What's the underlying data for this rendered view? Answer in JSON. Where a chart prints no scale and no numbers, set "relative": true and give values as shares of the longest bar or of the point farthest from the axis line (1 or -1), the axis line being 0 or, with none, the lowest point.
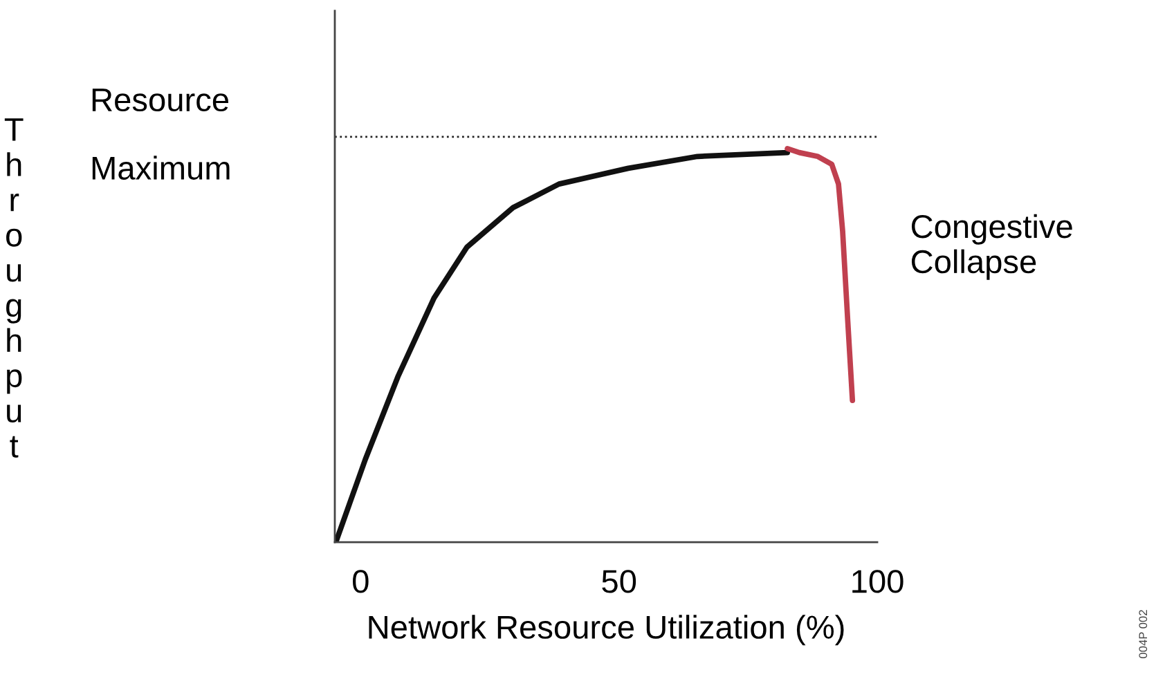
{
  "chart_data": {
    "type": "line",
    "relative": true,
    "xlabel": "Network Resource Utilization (%)",
    "ylabel": "Throughput",
    "xlim": [
      -5,
      100
    ],
    "xticks": [
      0,
      50,
      100
    ],
    "grid": false,
    "legend": false,
    "line_style": "solid",
    "series": [
      {
        "color": "#111111",
        "x": [
          -4.8,
          0.9,
          7.2,
          14.2,
          20.6,
          29.5,
          38.4,
          51.8,
          65.2,
          82.6
        ],
        "values": [
          0,
          0.21,
          0.42,
          0.62,
          0.75,
          0.85,
          0.91,
          0.95,
          0.98,
          0.99
        ]
      },
      {
        "color": "#c0404f",
        "x": [
          82.6,
          84.9,
          88.5,
          91.2,
          92.5,
          93.3,
          94.3,
          95.2
        ],
        "values": [
          1.0,
          0.99,
          0.98,
          0.96,
          0.91,
          0.79,
          0.56,
          0.36
        ]
      }
    ],
    "ref_lines": [
      {
        "axis": "y",
        "value": 1.03,
        "label": "Resource\nMaximum",
        "line_style": "dotted",
        "color": "#222222"
      }
    ],
    "annotations": [
      {
        "text": "Congestive\nCollapse",
        "x": 95.2,
        "y": 0.75
      },
      "004P 002"
    ]
  }
}
